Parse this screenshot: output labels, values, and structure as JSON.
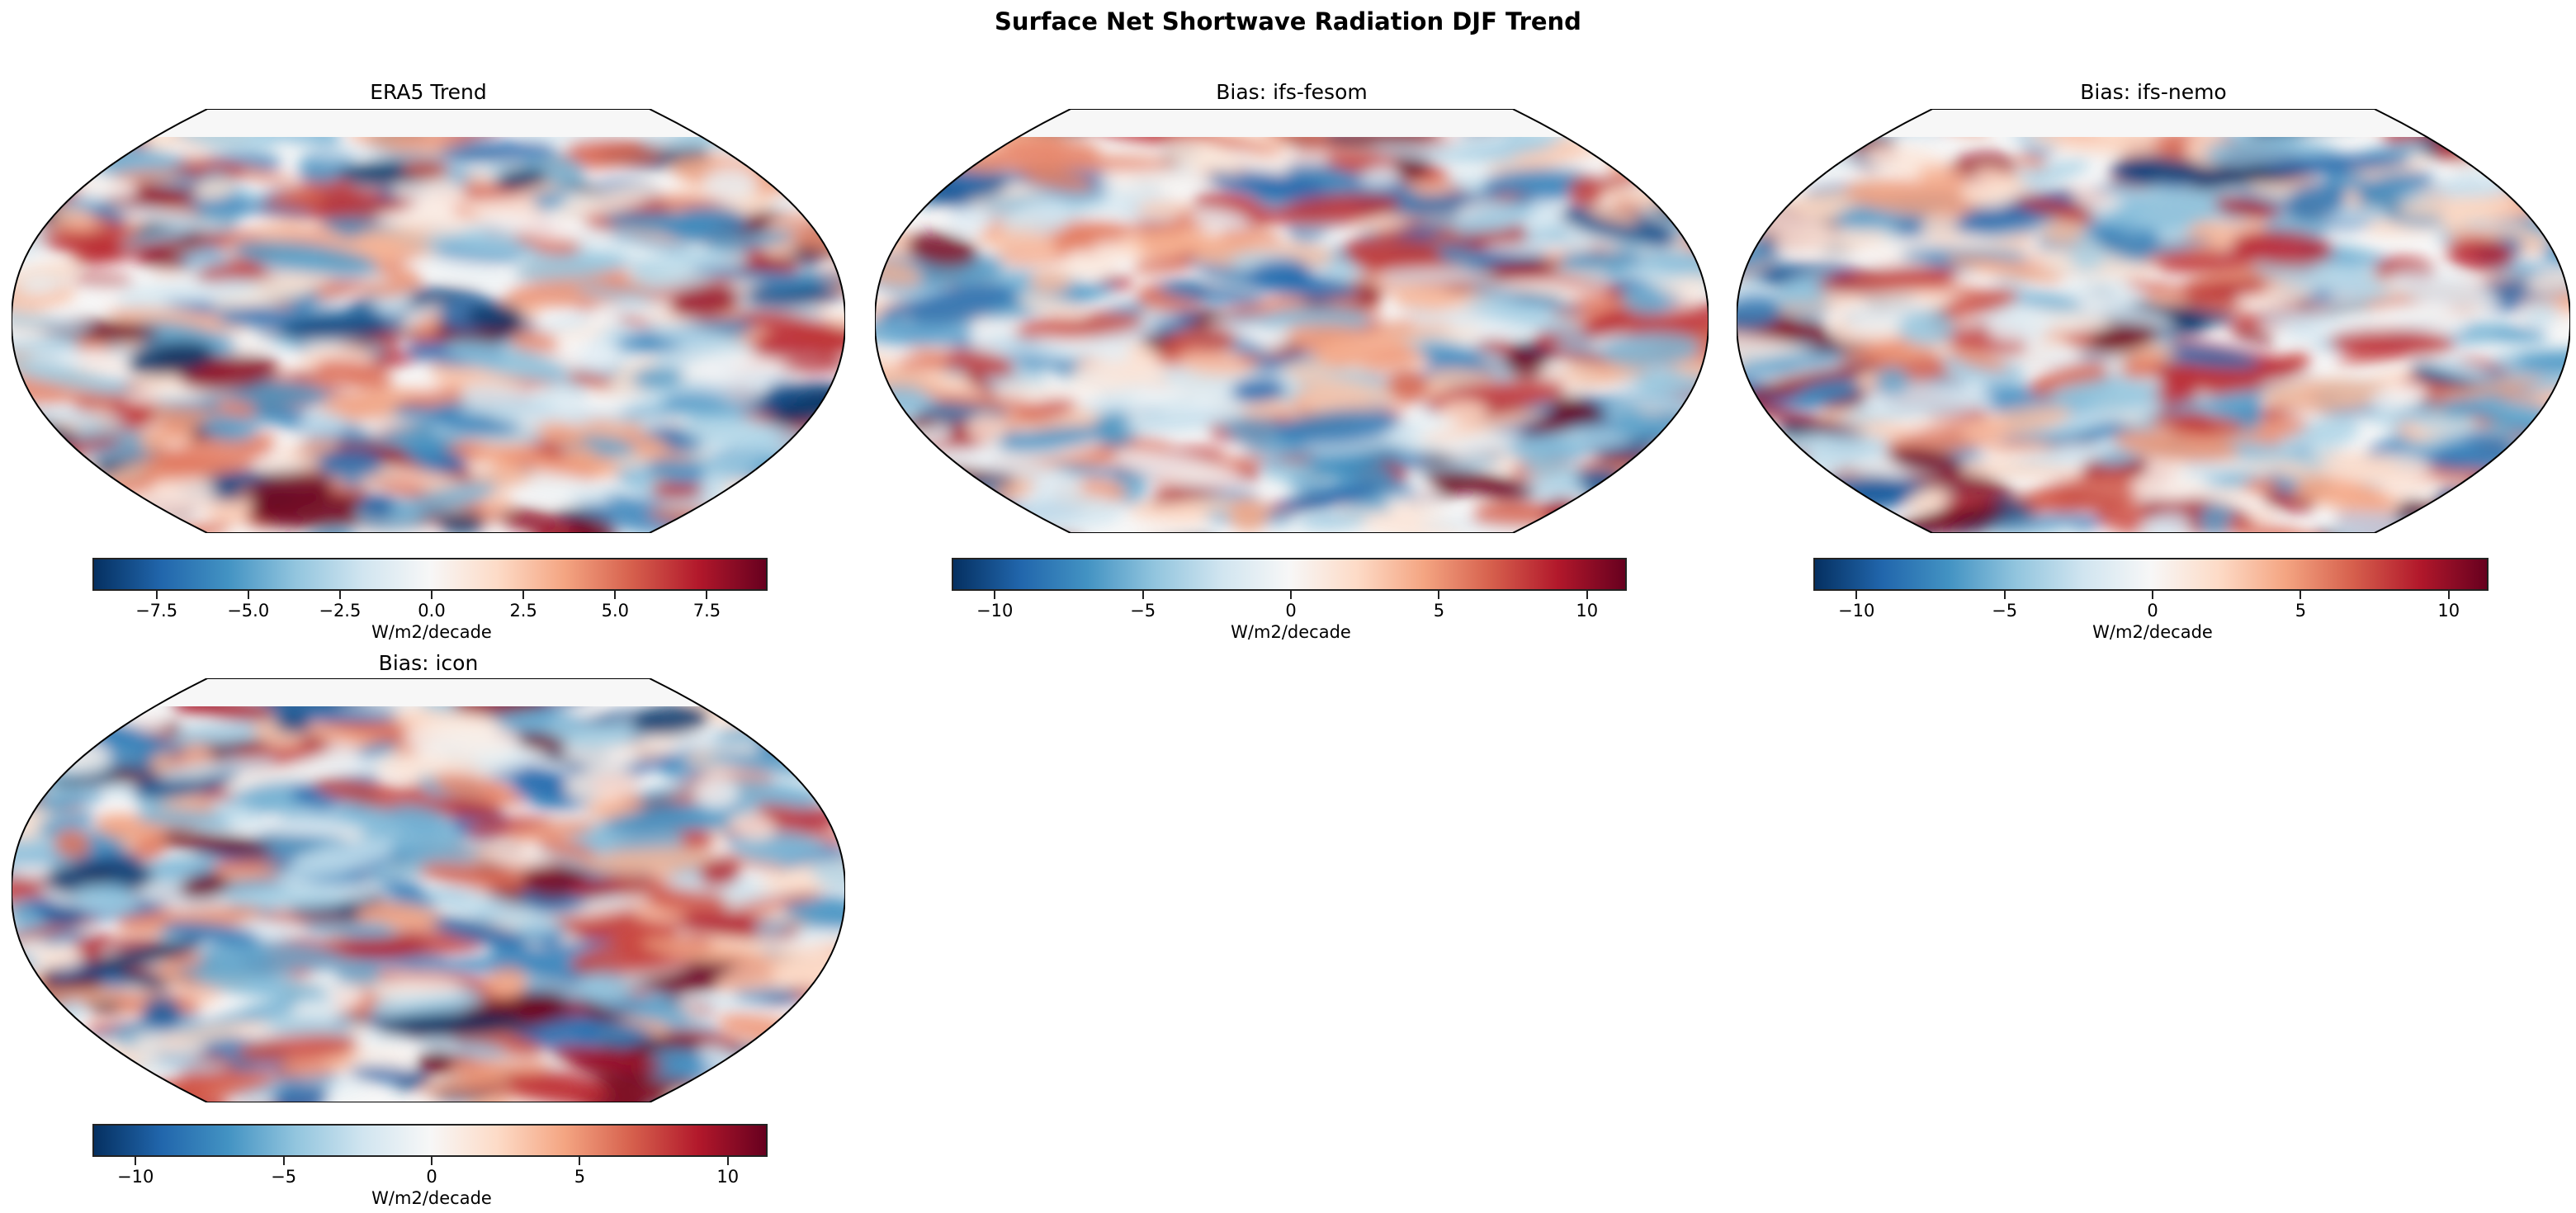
{
  "chart_data": [
    {
      "type": "heatmap",
      "title": "ERA5 Trend",
      "projection": "Robinson",
      "colormap": "RdBu_r",
      "clim": [
        -9.2,
        9.2
      ],
      "colorbar": {
        "ticks": [
          -7.5,
          -5.0,
          -2.5,
          0.0,
          2.5,
          5.0,
          7.5
        ],
        "tick_labels": [
          "−7.5",
          "−5.0",
          "−2.5",
          "0.0",
          "2.5",
          "5.0",
          "7.5"
        ],
        "label": "W/m2/decade"
      }
    },
    {
      "type": "heatmap",
      "title": "Bias: ifs-fesom",
      "projection": "Robinson",
      "colormap": "RdBu_r",
      "clim": [
        -11.4,
        11.4
      ],
      "colorbar": {
        "ticks": [
          -10,
          -5,
          0,
          5,
          10
        ],
        "tick_labels": [
          "−10",
          "−5",
          "0",
          "5",
          "10"
        ],
        "label": "W/m2/decade"
      }
    },
    {
      "type": "heatmap",
      "title": "Bias: ifs-nemo",
      "projection": "Robinson",
      "colormap": "RdBu_r",
      "clim": [
        -11.4,
        11.4
      ],
      "colorbar": {
        "ticks": [
          -10,
          -5,
          0,
          5,
          10
        ],
        "tick_labels": [
          "−10",
          "−5",
          "0",
          "5",
          "10"
        ],
        "label": "W/m2/decade"
      }
    },
    {
      "type": "heatmap",
      "title": "Bias: icon",
      "projection": "Robinson",
      "colormap": "RdBu_r",
      "clim": [
        -11.4,
        11.4
      ],
      "colorbar": {
        "ticks": [
          -10,
          -5,
          0,
          5,
          10
        ],
        "tick_labels": [
          "−10",
          "−5",
          "0",
          "5",
          "10"
        ],
        "label": "W/m2/decade"
      }
    }
  ],
  "figure": {
    "suptitle": "Surface Net Shortwave Radiation DJF Trend"
  }
}
